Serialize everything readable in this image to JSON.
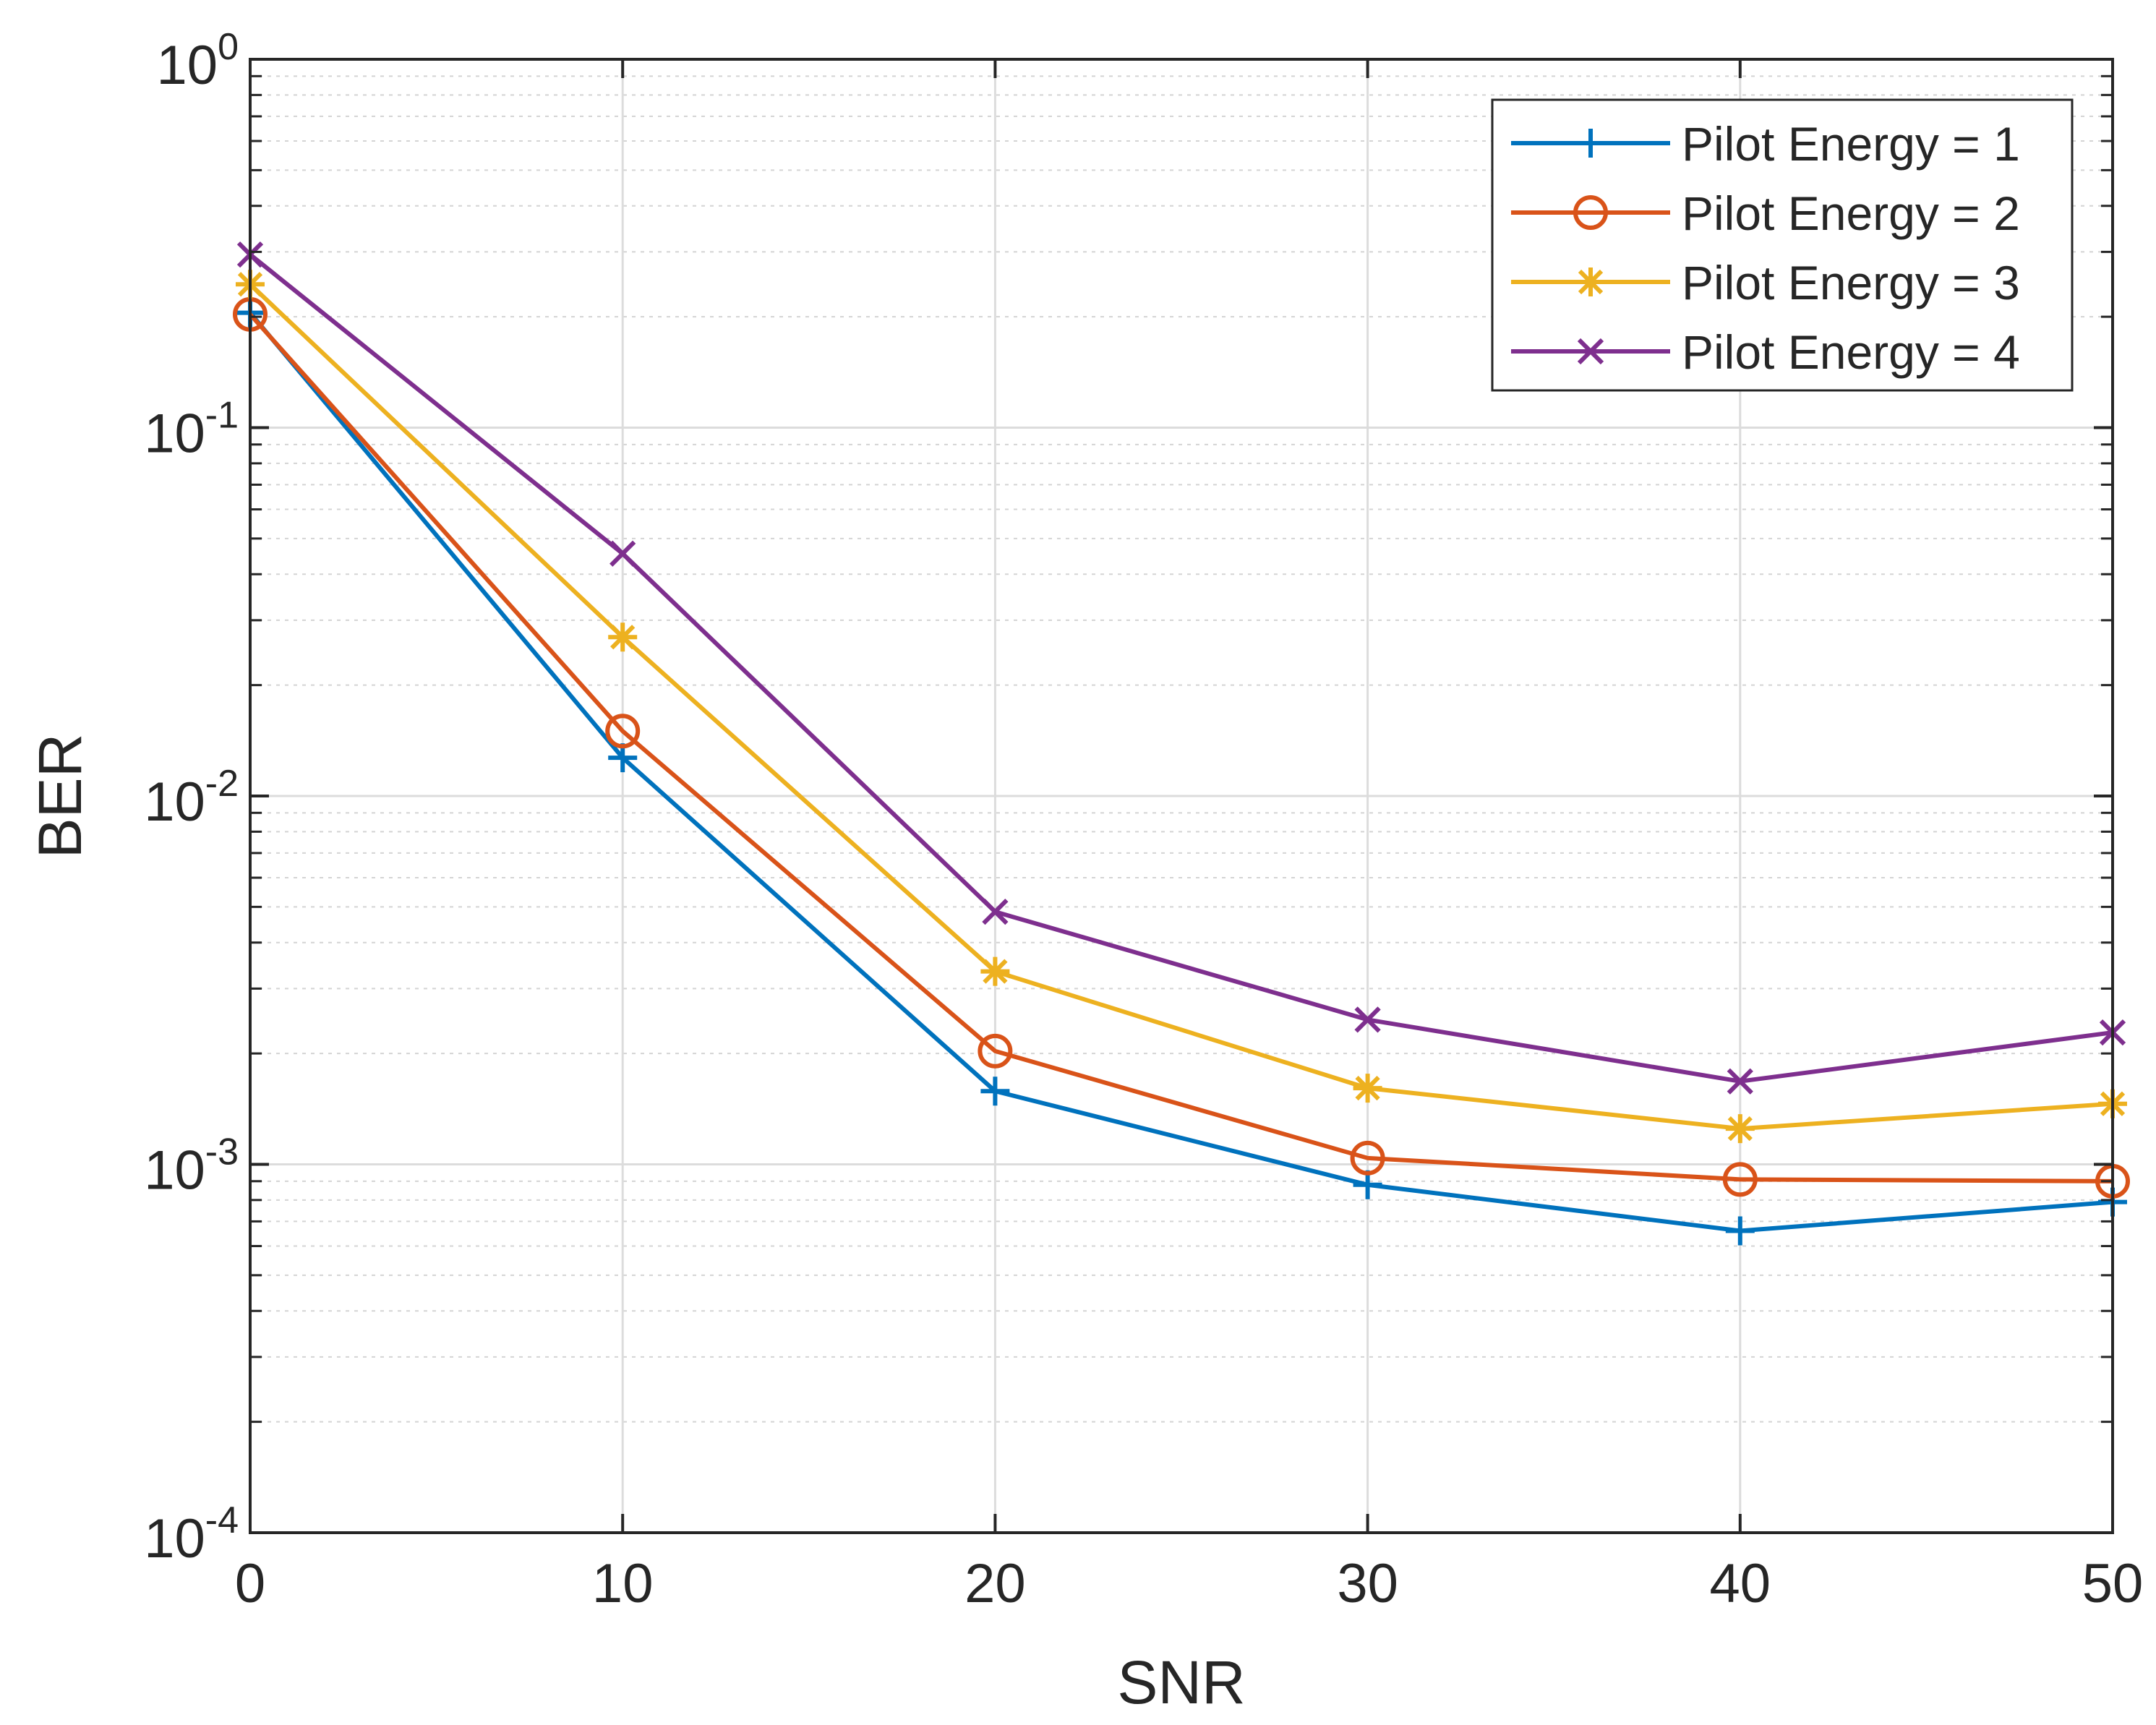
{
  "chart_data": {
    "type": "line",
    "title": "",
    "xlabel": "SNR",
    "ylabel": "BER",
    "x": [
      0,
      10,
      20,
      30,
      40,
      50
    ],
    "xlim": [
      0,
      50
    ],
    "ylim": [
      0.0001,
      1
    ],
    "yscale": "log",
    "grid": true,
    "legend_position": "top-right",
    "x_ticks": [
      {
        "value": 0,
        "label": "0"
      },
      {
        "value": 10,
        "label": "10"
      },
      {
        "value": 20,
        "label": "20"
      },
      {
        "value": 30,
        "label": "30"
      },
      {
        "value": 40,
        "label": "40"
      },
      {
        "value": 50,
        "label": "50"
      }
    ],
    "y_ticks": [
      {
        "value": 0.0001,
        "base": "10",
        "exp": "-4"
      },
      {
        "value": 0.001,
        "base": "10",
        "exp": "-3"
      },
      {
        "value": 0.01,
        "base": "10",
        "exp": "-2"
      },
      {
        "value": 0.1,
        "base": "10",
        "exp": "-1"
      },
      {
        "value": 1,
        "base": "10",
        "exp": "0"
      }
    ],
    "series": [
      {
        "name": "Pilot Energy = 1",
        "color": "#0072BD",
        "marker": "plus",
        "values": [
          0.205,
          0.0127,
          0.00158,
          0.00088,
          0.00066,
          0.00079
        ]
      },
      {
        "name": "Pilot Energy = 2",
        "color": "#D95319",
        "marker": "circle",
        "values": [
          0.203,
          0.015,
          0.00203,
          0.00104,
          0.00091,
          0.0009
        ]
      },
      {
        "name": "Pilot Energy = 3",
        "color": "#EDB120",
        "marker": "asterisk",
        "values": [
          0.245,
          0.027,
          0.00334,
          0.00161,
          0.00125,
          0.00146
        ]
      },
      {
        "name": "Pilot Energy = 4",
        "color": "#7E2F8E",
        "marker": "x",
        "values": [
          0.295,
          0.0455,
          0.00485,
          0.00247,
          0.00168,
          0.00228
        ]
      }
    ]
  }
}
